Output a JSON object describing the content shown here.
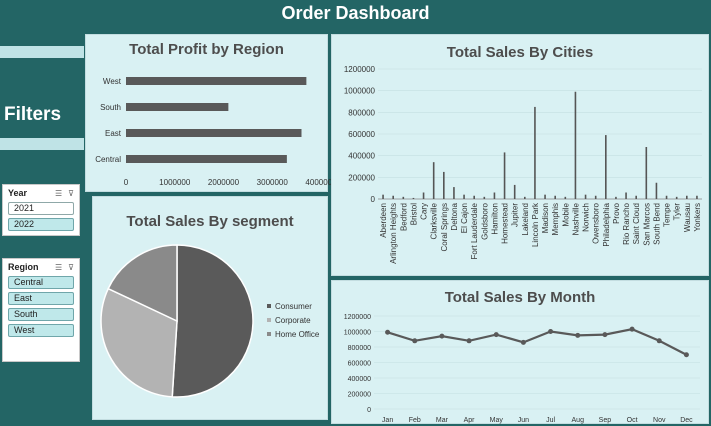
{
  "header": {
    "title": "Order Dashboard"
  },
  "sidebar": {
    "filters_label": "Filters",
    "year_slicer": {
      "title": "Year",
      "items": [
        {
          "label": "2021",
          "selected": false
        },
        {
          "label": "2022",
          "selected": true
        }
      ]
    },
    "region_slicer": {
      "title": "Region",
      "items": [
        {
          "label": "Central",
          "selected": true
        },
        {
          "label": "East",
          "selected": true
        },
        {
          "label": "South",
          "selected": true
        },
        {
          "label": "West",
          "selected": true
        }
      ]
    },
    "icons": [
      "multi-select-icon",
      "clear-filter-icon"
    ]
  },
  "colors": {
    "background": "#236565",
    "panel": "#d9f1f3",
    "bar": "#595959",
    "accent_band": "#bfe3e6"
  },
  "chart_data": [
    {
      "id": "profit_by_region",
      "type": "bar",
      "orientation": "horizontal",
      "title": "Total Profit by Region",
      "categories": [
        "West",
        "South",
        "East",
        "Central"
      ],
      "values": [
        3700000,
        2100000,
        3600000,
        3300000
      ],
      "xlim": [
        0,
        4000000
      ],
      "xticks": [
        "0",
        "1000000",
        "2000000",
        "3000000",
        "4000000"
      ]
    },
    {
      "id": "sales_by_cities",
      "type": "bar",
      "title": "Total Sales By Cities",
      "ylim": [
        0,
        1200000
      ],
      "yticks": [
        "0",
        "200000",
        "400000",
        "600000",
        "800000",
        "1000000",
        "1200000"
      ],
      "categories": [
        "Aberdeen",
        "Arlington Heights",
        "Bedford",
        "Bristol",
        "Cary",
        "Clarksville",
        "Coral Springs",
        "Deltona",
        "El Cajon",
        "Fort Lauderdale",
        "Goldsboro",
        "Hamilton",
        "Homestead",
        "Jupiter",
        "Lakeland",
        "Lincoln Park",
        "Madison",
        "Memphis",
        "Mobile",
        "Nashville",
        "Norwich",
        "Owensboro",
        "Philadelphia",
        "Provo",
        "Rio Rancho",
        "Saint Cloud",
        "San Marcos",
        "South Bend",
        "Tempe",
        "Tyler",
        "Wausau",
        "Yonkers"
      ],
      "values": [
        40000,
        30000,
        20000,
        10000,
        60000,
        340000,
        250000,
        110000,
        40000,
        30000,
        20000,
        60000,
        430000,
        130000,
        20000,
        850000,
        40000,
        30000,
        20000,
        990000,
        40000,
        30000,
        590000,
        20000,
        60000,
        30000,
        480000,
        150000,
        30000,
        20000,
        30000,
        30000
      ]
    },
    {
      "id": "sales_by_segment",
      "type": "pie",
      "title": "Total Sales By segment",
      "labels": [
        "Consumer",
        "Corporate",
        "Home Office"
      ],
      "values": [
        51,
        31,
        18
      ],
      "colors": [
        "#5a5a5a",
        "#b3b3b3",
        "#8a8a8a"
      ]
    },
    {
      "id": "sales_by_month",
      "type": "line",
      "title": "Total Sales By Month",
      "categories": [
        "Jan",
        "Feb",
        "Mar",
        "Apr",
        "May",
        "Jun",
        "Jul",
        "Aug",
        "Sep",
        "Oct",
        "Nov",
        "Dec"
      ],
      "values": [
        990000,
        880000,
        940000,
        880000,
        960000,
        860000,
        1000000,
        950000,
        960000,
        1030000,
        880000,
        700000
      ],
      "ylim": [
        0,
        1200000
      ],
      "yticks": [
        "0",
        "200000",
        "400000",
        "600000",
        "800000",
        "1000000",
        "1200000"
      ]
    }
  ]
}
